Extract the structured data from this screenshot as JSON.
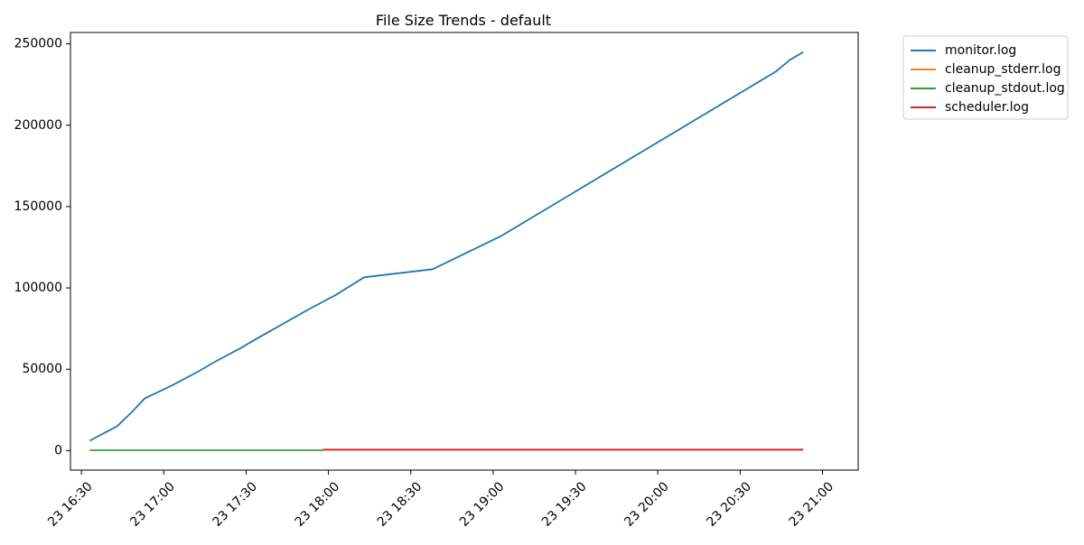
{
  "chart_data": {
    "type": "line",
    "title": "File Size Trends - default",
    "xlabel": "",
    "ylabel": "",
    "x_ticks": [
      "23 16:30",
      "23 17:00",
      "23 17:30",
      "23 18:00",
      "23 18:30",
      "23 19:00",
      "23 19:30",
      "23 20:00",
      "23 20:30",
      "23 21:00"
    ],
    "y_ticks": [
      "0",
      "50000",
      "100000",
      "150000",
      "200000",
      "250000"
    ],
    "xlim": [
      "16:26",
      "21:13"
    ],
    "ylim": [
      -12000,
      257000
    ],
    "grid": false,
    "legend_position": "outside-top-right",
    "series": [
      {
        "name": "monitor.log",
        "color": "#1f77b4",
        "points": [
          [
            "16:33",
            6000
          ],
          [
            "16:43",
            15000
          ],
          [
            "16:48",
            23000
          ],
          [
            "16:53",
            32000
          ],
          [
            "17:03",
            40000
          ],
          [
            "17:13",
            49000
          ],
          [
            "17:18",
            54000
          ],
          [
            "17:28",
            63000
          ],
          [
            "17:33",
            68000
          ],
          [
            "17:53",
            87000
          ],
          [
            "18:03",
            96000
          ],
          [
            "18:13",
            106500
          ],
          [
            "18:38",
            111500
          ],
          [
            "19:03",
            132000
          ],
          [
            "20:43",
            233000
          ],
          [
            "20:48",
            240000
          ],
          [
            "20:53",
            245000
          ]
        ]
      },
      {
        "name": "cleanup_stderr.log",
        "color": "#ff7f0e",
        "points": [
          [
            "17:58",
            500
          ],
          [
            "20:53",
            500
          ]
        ]
      },
      {
        "name": "cleanup_stdout.log",
        "color": "#2ca02c",
        "points": [
          [
            "16:33",
            200
          ],
          [
            "17:58",
            200
          ]
        ]
      },
      {
        "name": "scheduler.log",
        "color": "#d62728",
        "points": [
          [
            "17:58",
            600
          ],
          [
            "20:53",
            600
          ]
        ]
      }
    ]
  }
}
